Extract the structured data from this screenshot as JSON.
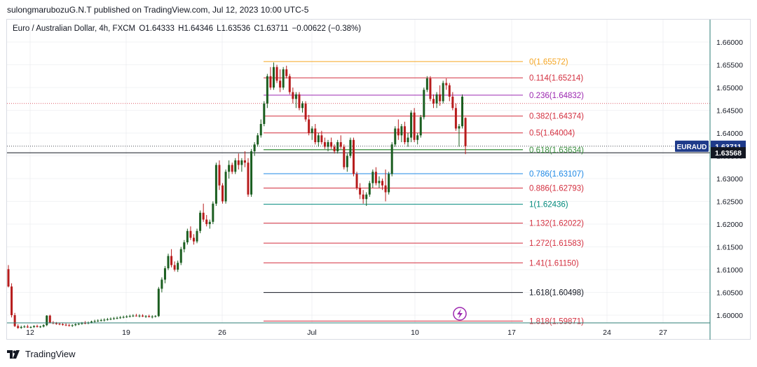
{
  "publisher_line": "sulongmarubozuG.N.T published on TradingView.com, Jul 12, 2023 10:00 UTC-5",
  "symbol": {
    "name": "Euro / Australian Dollar, 4h, FXCM",
    "open_label": "O",
    "open": "1.64333",
    "high_label": "H",
    "high": "1.64346",
    "low_label": "L",
    "low": "1.63536",
    "close_label": "C",
    "close": "1.63711",
    "change": "−0.00622 (−0.38%)"
  },
  "price_axis": {
    "labels": [
      "1.66000",
      "1.65500",
      "1.65000",
      "1.64500",
      "1.64000",
      "1.63500",
      "1.63000",
      "1.62500",
      "1.62000",
      "1.61500",
      "1.61000",
      "1.60500",
      "1.60000"
    ],
    "ticker_tag": "EURAUD",
    "last_price": "1.63711",
    "crosshair_price": "1.63568"
  },
  "time_axis": {
    "labels": [
      "12",
      "19",
      "26",
      "Jul",
      "10",
      "17",
      "24",
      "27"
    ]
  },
  "fib_levels": [
    {
      "label": "0(1.65572)",
      "price": 1.65572,
      "color": "#f5a623"
    },
    {
      "label": "0.114(1.65214)",
      "price": 1.65214,
      "color": "#d32f3f"
    },
    {
      "label": "0.236(1.64832)",
      "price": 1.64832,
      "color": "#9c27b0"
    },
    {
      "label": "0.382(1.64374)",
      "price": 1.64374,
      "color": "#d32f3f"
    },
    {
      "label": "0.5(1.64004)",
      "price": 1.64004,
      "color": "#d32f3f"
    },
    {
      "label": "0.618(1.63634)",
      "price": 1.63634,
      "color": "#388e3c"
    },
    {
      "label": "0.786(1.63107)",
      "price": 1.63107,
      "color": "#1e88e5"
    },
    {
      "label": "0.886(1.62793)",
      "price": 1.62793,
      "color": "#d32f3f"
    },
    {
      "label": "1(1.62436)",
      "price": 1.62436,
      "color": "#00897b"
    },
    {
      "label": "1.132(1.62022)",
      "price": 1.62022,
      "color": "#d32f3f"
    },
    {
      "label": "1.272(1.61583)",
      "price": 1.61583,
      "color": "#d32f3f"
    },
    {
      "label": "1.41(1.61150)",
      "price": 1.6115,
      "color": "#d32f3f"
    },
    {
      "label": "1.618(1.60498)",
      "price": 1.60498,
      "color": "#131722"
    },
    {
      "label": "1.818(1.59871)",
      "price": 1.59871,
      "color": "#d32f3f"
    }
  ],
  "colors": {
    "up": "#1b5e20",
    "down": "#b71c1c",
    "grid": "#e6e8ec",
    "axis_text": "#131722"
  },
  "candles": [
    [
      1.6101,
      1.611,
      1.6061,
      1.6063
    ],
    [
      1.6063,
      1.607,
      1.5995,
      1.6
    ],
    [
      1.6,
      1.6005,
      1.5974,
      1.5976
    ],
    [
      1.5976,
      1.598,
      1.597,
      1.5972
    ],
    [
      1.5972,
      1.5977,
      1.597,
      1.5974
    ],
    [
      1.5974,
      1.5978,
      1.5972,
      1.5975
    ],
    [
      1.5975,
      1.5979,
      1.5972,
      1.5973
    ],
    [
      1.5973,
      1.5976,
      1.5971,
      1.5974
    ],
    [
      1.5974,
      1.5978,
      1.5972,
      1.5976
    ],
    [
      1.5976,
      1.5979,
      1.5973,
      1.5974
    ],
    [
      1.5974,
      1.5977,
      1.5972,
      1.5975
    ],
    [
      1.5975,
      1.598,
      1.5973,
      1.5978
    ],
    [
      1.5978,
      1.6,
      1.5976,
      1.5999
    ],
    [
      1.5999,
      1.6001,
      1.5982,
      1.5984
    ],
    [
      1.5984,
      1.5987,
      1.598,
      1.5982
    ],
    [
      1.5982,
      1.5985,
      1.5979,
      1.5981
    ],
    [
      1.5981,
      1.5984,
      1.5978,
      1.598
    ],
    [
      1.598,
      1.5983,
      1.5977,
      1.5979
    ],
    [
      1.5979,
      1.5982,
      1.5976,
      1.5978
    ],
    [
      1.5978,
      1.5981,
      1.5975,
      1.5977
    ],
    [
      1.5977,
      1.598,
      1.5974,
      1.5978
    ],
    [
      1.5978,
      1.5982,
      1.5976,
      1.598
    ],
    [
      1.598,
      1.5984,
      1.5978,
      1.5981
    ],
    [
      1.5981,
      1.5985,
      1.5979,
      1.5983
    ],
    [
      1.5983,
      1.5987,
      1.598,
      1.5982
    ],
    [
      1.5982,
      1.5986,
      1.598,
      1.5984
    ],
    [
      1.5984,
      1.5988,
      1.5982,
      1.5986
    ],
    [
      1.5986,
      1.599,
      1.5984,
      1.5987
    ],
    [
      1.5987,
      1.5991,
      1.5985,
      1.5988
    ],
    [
      1.5988,
      1.5992,
      1.5986,
      1.5989
    ],
    [
      1.5989,
      1.5993,
      1.5986,
      1.599
    ],
    [
      1.599,
      1.5994,
      1.5988,
      1.5991
    ],
    [
      1.5991,
      1.5995,
      1.5989,
      1.5992
    ],
    [
      1.5992,
      1.5996,
      1.599,
      1.5993
    ],
    [
      1.5993,
      1.5997,
      1.5991,
      1.5994
    ],
    [
      1.5994,
      1.5998,
      1.5992,
      1.5995
    ],
    [
      1.5995,
      1.5999,
      1.5993,
      1.5996
    ],
    [
      1.5996,
      1.6,
      1.5994,
      1.5997
    ],
    [
      1.5997,
      1.6001,
      1.5995,
      1.5998
    ],
    [
      1.5998,
      1.6002,
      1.5996,
      1.5999
    ],
    [
      1.5999,
      1.6003,
      1.5997,
      1.5998
    ],
    [
      1.5998,
      1.6002,
      1.5995,
      1.5999
    ],
    [
      1.5999,
      1.6002,
      1.5996,
      1.5997
    ],
    [
      1.5997,
      1.6,
      1.5994,
      1.5998
    ],
    [
      1.5998,
      1.6001,
      1.5995,
      1.5996
    ],
    [
      1.5996,
      1.6,
      1.5993,
      1.5997
    ],
    [
      1.5997,
      1.6,
      1.5995,
      1.5998
    ],
    [
      1.5998,
      1.6062,
      1.5996,
      1.6058
    ],
    [
      1.6058,
      1.6083,
      1.605,
      1.6078
    ],
    [
      1.6078,
      1.6108,
      1.607,
      1.6103
    ],
    [
      1.6103,
      1.6135,
      1.6099,
      1.613
    ],
    [
      1.613,
      1.6145,
      1.6105,
      1.611
    ],
    [
      1.611,
      1.6118,
      1.6096,
      1.61
    ],
    [
      1.61,
      1.612,
      1.6095,
      1.6115
    ],
    [
      1.6115,
      1.615,
      1.611,
      1.6145
    ],
    [
      1.6145,
      1.6165,
      1.6138,
      1.616
    ],
    [
      1.616,
      1.619,
      1.6155,
      1.6185
    ],
    [
      1.6185,
      1.6195,
      1.6165,
      1.617
    ],
    [
      1.617,
      1.6178,
      1.6155,
      1.6162
    ],
    [
      1.6162,
      1.619,
      1.6158,
      1.6185
    ],
    [
      1.6185,
      1.623,
      1.618,
      1.6225
    ],
    [
      1.6225,
      1.6245,
      1.6205,
      1.621
    ],
    [
      1.621,
      1.622,
      1.6195,
      1.62
    ],
    [
      1.62,
      1.621,
      1.619,
      1.6205
    ],
    [
      1.6205,
      1.625,
      1.62,
      1.6245
    ],
    [
      1.6245,
      1.6335,
      1.624,
      1.633
    ],
    [
      1.633,
      1.634,
      1.6275,
      1.6285
    ],
    [
      1.6285,
      1.629,
      1.6245,
      1.625
    ],
    [
      1.625,
      1.632,
      1.6245,
      1.6315
    ],
    [
      1.6315,
      1.634,
      1.63,
      1.633
    ],
    [
      1.633,
      1.6335,
      1.631,
      1.6315
    ],
    [
      1.6315,
      1.6345,
      1.631,
      1.634
    ],
    [
      1.634,
      1.6355,
      1.632,
      1.633
    ],
    [
      1.633,
      1.6345,
      1.6315,
      1.634
    ],
    [
      1.634,
      1.636,
      1.6325,
      1.6335
    ],
    [
      1.6335,
      1.6345,
      1.626,
      1.6265
    ],
    [
      1.6265,
      1.6365,
      1.626,
      1.636
    ],
    [
      1.636,
      1.638,
      1.635,
      1.6375
    ],
    [
      1.6375,
      1.64,
      1.637,
      1.6395
    ],
    [
      1.6395,
      1.643,
      1.639,
      1.642
    ],
    [
      1.642,
      1.647,
      1.6415,
      1.6465
    ],
    [
      1.6465,
      1.653,
      1.6455,
      1.6525
    ],
    [
      1.6525,
      1.6545,
      1.6495,
      1.65
    ],
    [
      1.65,
      1.6555,
      1.6495,
      1.6545
    ],
    [
      1.6545,
      1.655,
      1.651,
      1.6515
    ],
    [
      1.6515,
      1.654,
      1.649,
      1.65
    ],
    [
      1.65,
      1.6545,
      1.6495,
      1.654
    ],
    [
      1.654,
      1.6548,
      1.652,
      1.6525
    ],
    [
      1.6525,
      1.653,
      1.6485,
      1.649
    ],
    [
      1.649,
      1.65,
      1.6465,
      1.6475
    ],
    [
      1.6475,
      1.649,
      1.6455,
      1.6485
    ],
    [
      1.6485,
      1.649,
      1.645,
      1.6455
    ],
    [
      1.6455,
      1.647,
      1.6445,
      1.6465
    ],
    [
      1.6465,
      1.647,
      1.6425,
      1.643
    ],
    [
      1.643,
      1.644,
      1.6395,
      1.64
    ],
    [
      1.64,
      1.6415,
      1.6385,
      1.641
    ],
    [
      1.641,
      1.642,
      1.6375,
      1.638
    ],
    [
      1.638,
      1.64,
      1.637,
      1.6395
    ],
    [
      1.6395,
      1.6405,
      1.6375,
      1.638
    ],
    [
      1.638,
      1.639,
      1.6365,
      1.637
    ],
    [
      1.637,
      1.6385,
      1.636,
      1.638
    ],
    [
      1.638,
      1.639,
      1.6365,
      1.637
    ],
    [
      1.637,
      1.6375,
      1.6355,
      1.636
    ],
    [
      1.636,
      1.6385,
      1.6355,
      1.638
    ],
    [
      1.638,
      1.6395,
      1.6365,
      1.637
    ],
    [
      1.637,
      1.6375,
      1.632,
      1.6325
    ],
    [
      1.6325,
      1.6355,
      1.6315,
      1.635
    ],
    [
      1.635,
      1.639,
      1.6345,
      1.6385
    ],
    [
      1.6385,
      1.639,
      1.6305,
      1.631
    ],
    [
      1.631,
      1.6315,
      1.6275,
      1.628
    ],
    [
      1.628,
      1.629,
      1.6255,
      1.6265
    ],
    [
      1.6265,
      1.6275,
      1.6245,
      1.6255
    ],
    [
      1.6255,
      1.627,
      1.624,
      1.6265
    ],
    [
      1.6265,
      1.6295,
      1.626,
      1.629
    ],
    [
      1.629,
      1.632,
      1.628,
      1.6315
    ],
    [
      1.6315,
      1.6325,
      1.6285,
      1.629
    ],
    [
      1.629,
      1.6305,
      1.628,
      1.6295
    ],
    [
      1.6295,
      1.63,
      1.6275,
      1.6285
    ],
    [
      1.6285,
      1.632,
      1.625,
      1.627
    ],
    [
      1.627,
      1.6315,
      1.6265,
      1.631
    ],
    [
      1.631,
      1.638,
      1.6305,
      1.6375
    ],
    [
      1.6375,
      1.6415,
      1.637,
      1.641
    ],
    [
      1.641,
      1.643,
      1.6385,
      1.6395
    ],
    [
      1.6395,
      1.642,
      1.638,
      1.6415
    ],
    [
      1.6415,
      1.6425,
      1.6375,
      1.638
    ],
    [
      1.638,
      1.64,
      1.637,
      1.639
    ],
    [
      1.639,
      1.645,
      1.638,
      1.6445
    ],
    [
      1.6445,
      1.6455,
      1.638,
      1.6385
    ],
    [
      1.6385,
      1.64,
      1.6375,
      1.6395
    ],
    [
      1.6395,
      1.644,
      1.639,
      1.6435
    ],
    [
      1.6435,
      1.65,
      1.643,
      1.6495
    ],
    [
      1.6495,
      1.6525,
      1.649,
      1.652
    ],
    [
      1.652,
      1.6525,
      1.647,
      1.6475
    ],
    [
      1.6475,
      1.6485,
      1.6455,
      1.6465
    ],
    [
      1.6465,
      1.649,
      1.6455,
      1.6485
    ],
    [
      1.6485,
      1.6505,
      1.646,
      1.647
    ],
    [
      1.647,
      1.6515,
      1.6465,
      1.651
    ],
    [
      1.651,
      1.652,
      1.6495,
      1.6505
    ],
    [
      1.6505,
      1.651,
      1.647,
      1.648
    ],
    [
      1.648,
      1.649,
      1.645,
      1.6455
    ],
    [
      1.6455,
      1.6465,
      1.6405,
      1.641
    ],
    [
      1.641,
      1.642,
      1.637,
      1.6415
    ],
    [
      1.6415,
      1.6485,
      1.641,
      1.648
    ],
    [
      1.64333,
      1.64346,
      1.63536,
      1.63711
    ]
  ]
}
